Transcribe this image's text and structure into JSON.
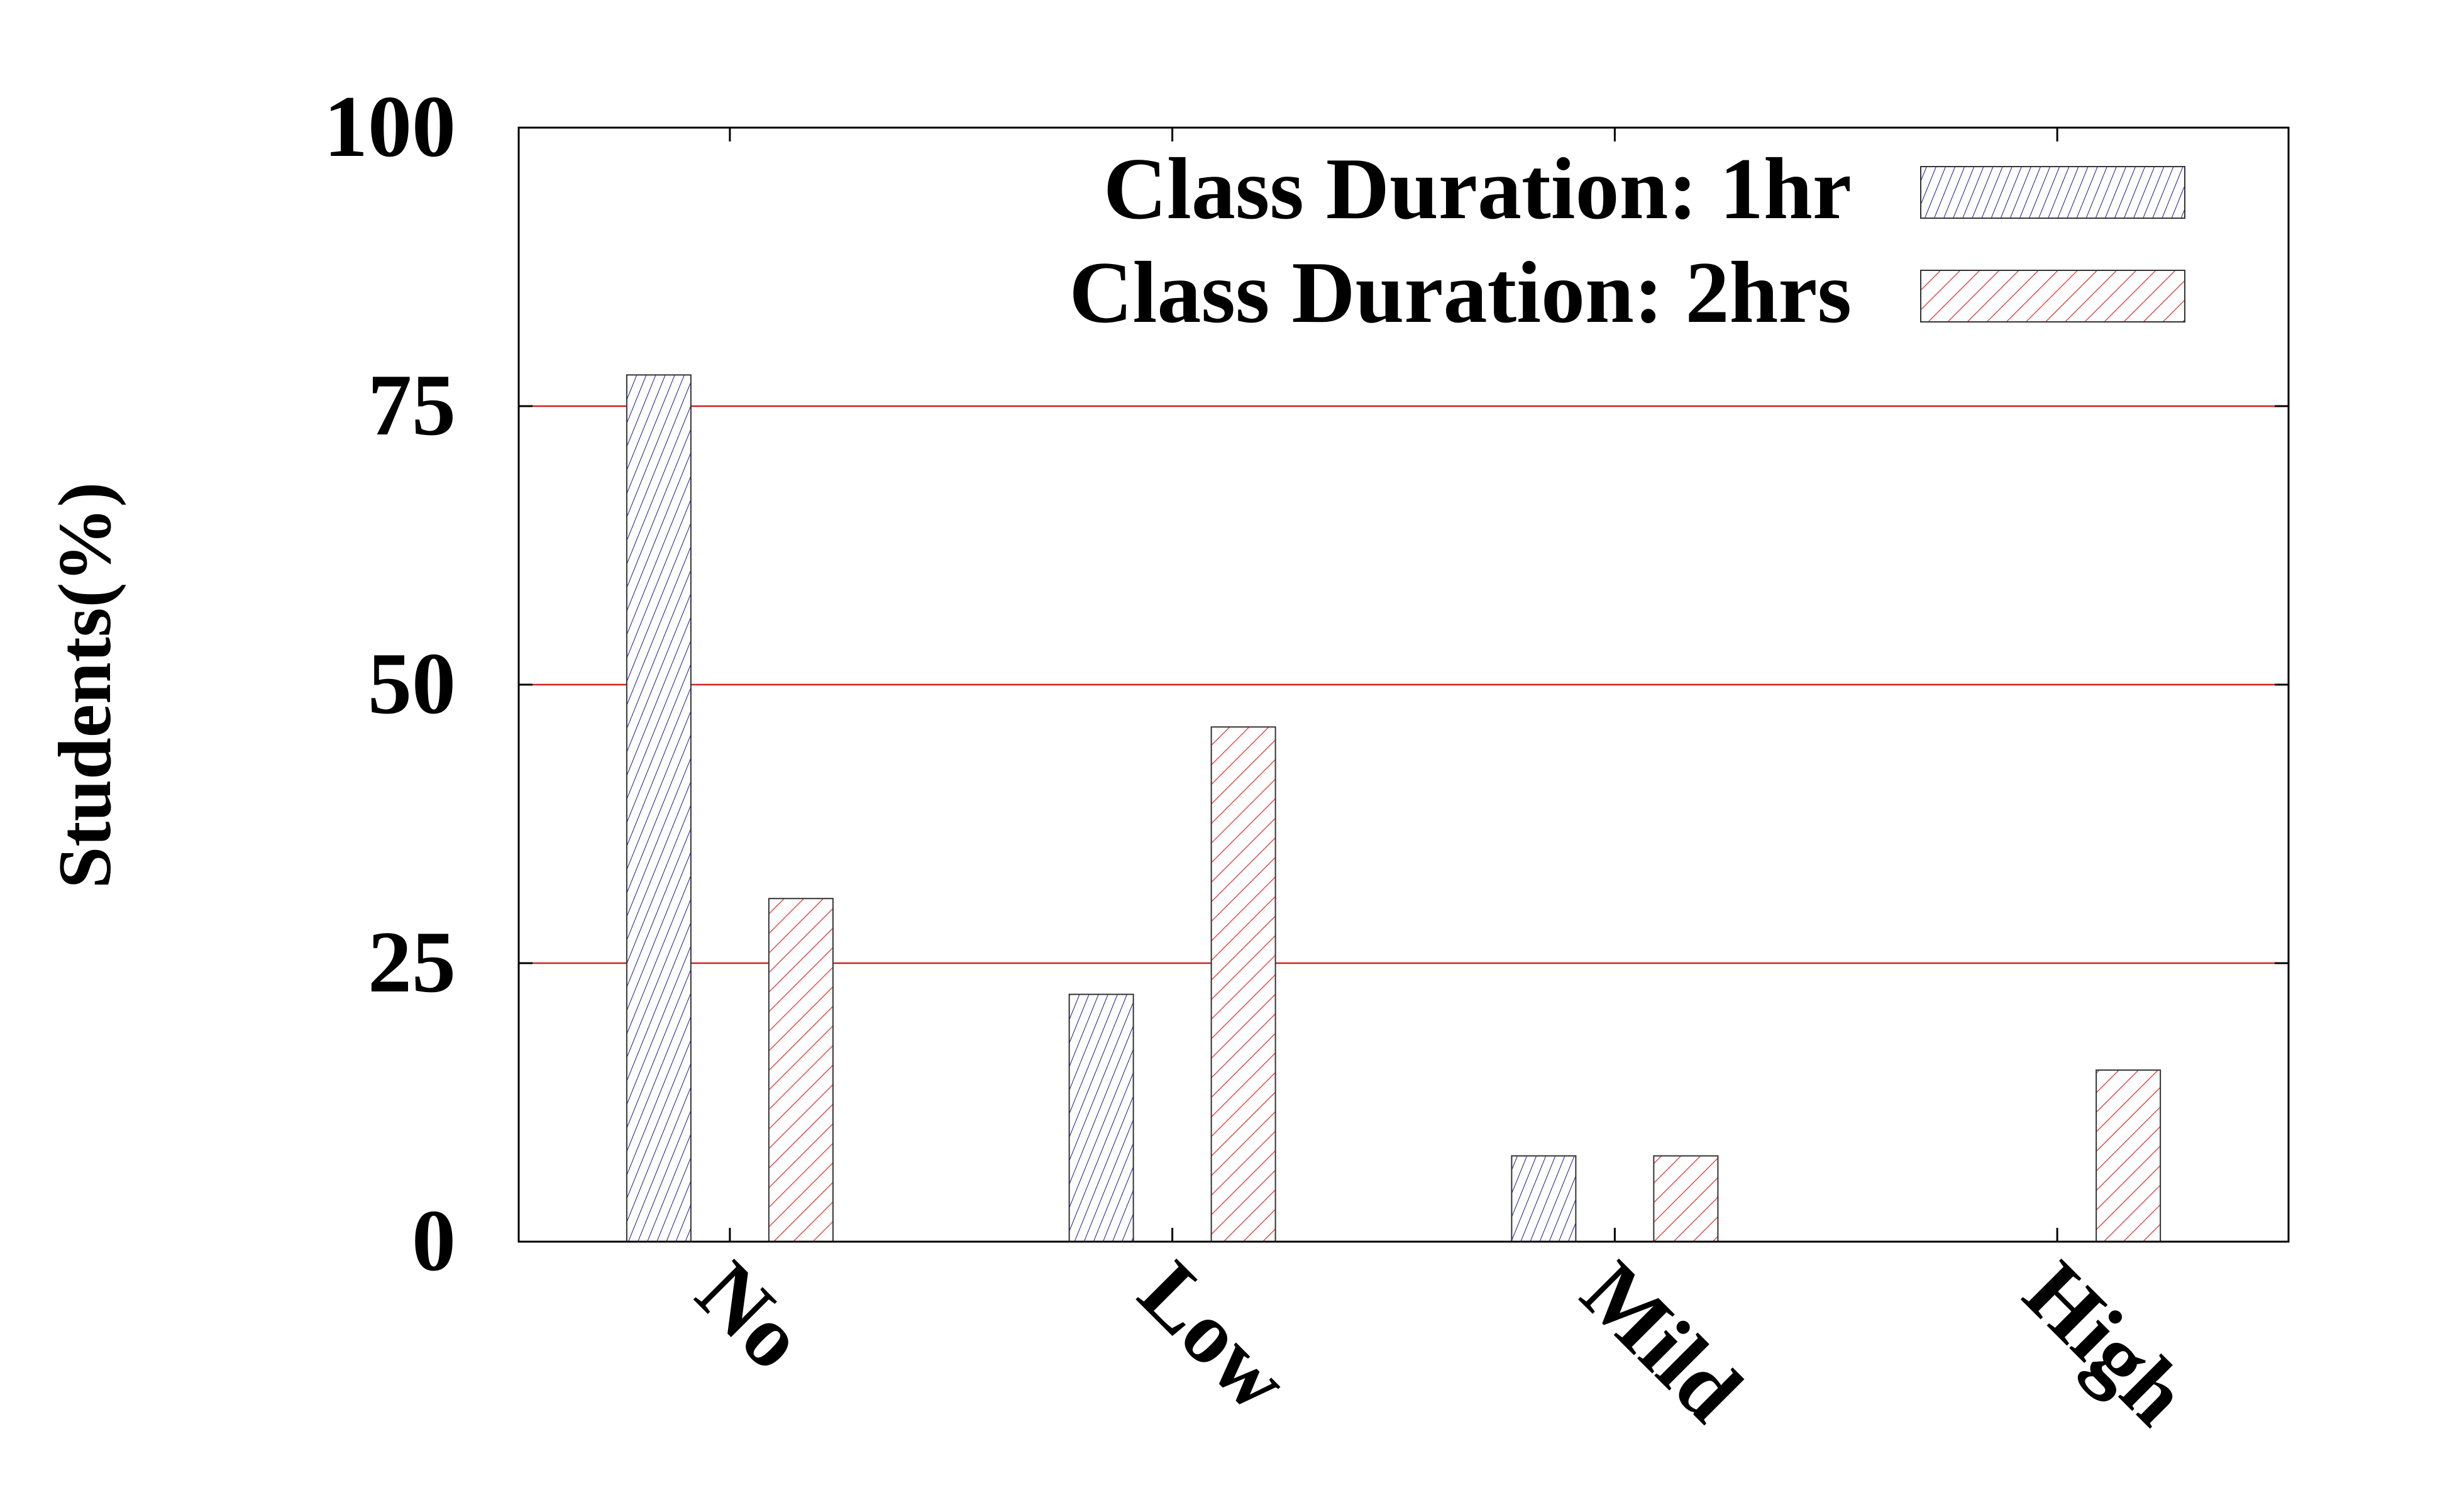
{
  "chart_data": {
    "type": "bar",
    "title": "",
    "xlabel": "",
    "ylabel": "Students(%)",
    "categories": [
      "No",
      "Low",
      "Mild",
      "High"
    ],
    "ylim": [
      0,
      100
    ],
    "yticks": [
      0,
      25,
      50,
      75,
      100
    ],
    "grid": "horizontal",
    "legend_position": "top-right",
    "series": [
      {
        "name": "Class Duration: 1hr",
        "values": [
          77.8,
          22.2,
          7.7,
          0
        ],
        "color": "#1a1a8c",
        "pattern": "hatch-steep"
      },
      {
        "name": "Class Duration: 2hrs",
        "values": [
          30.8,
          46.2,
          7.7,
          15.4
        ],
        "color": "#d43030",
        "pattern": "hatch-diagonal"
      }
    ],
    "colors": {
      "grid": "#cc2222",
      "frame": "#000000"
    }
  }
}
